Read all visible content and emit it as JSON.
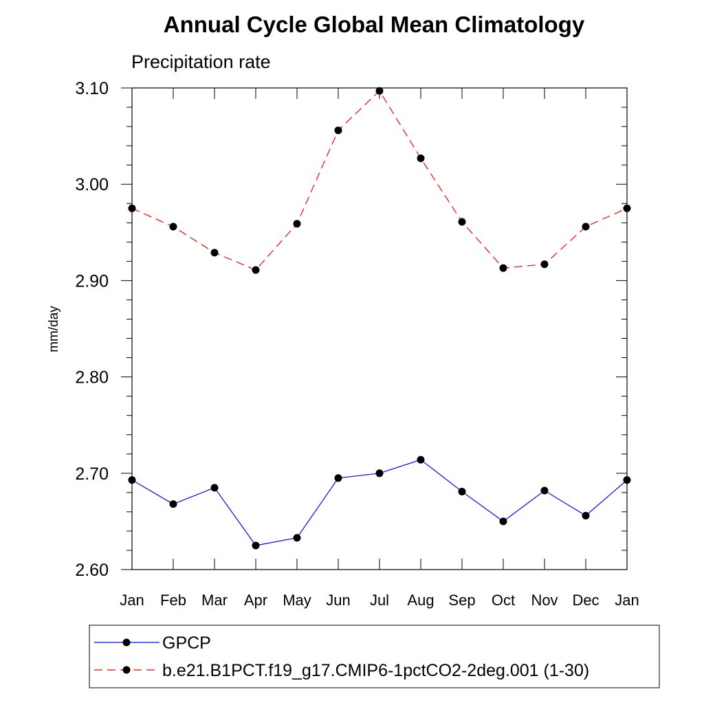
{
  "chart_data": {
    "type": "line",
    "title": "Annual Cycle Global Mean Climatology",
    "subtitle": "Precipitation rate",
    "xlabel": "",
    "ylabel": "mm/day",
    "ylim": [
      2.6,
      3.1
    ],
    "y_ticks": [
      "2.60",
      "2.70",
      "2.80",
      "2.90",
      "3.00",
      "3.10"
    ],
    "y_tick_values": [
      2.6,
      2.7,
      2.8,
      2.9,
      3.0,
      3.1
    ],
    "categories": [
      "Jan",
      "Feb",
      "Mar",
      "Apr",
      "May",
      "Jun",
      "Jul",
      "Aug",
      "Sep",
      "Oct",
      "Nov",
      "Dec",
      "Jan"
    ],
    "grid": false,
    "legend_position": "bottom",
    "series": [
      {
        "name": "GPCP",
        "color": "#0000ff",
        "line_style": "solid",
        "marker": "filled-circle",
        "values": [
          2.693,
          2.668,
          2.685,
          2.625,
          2.633,
          2.695,
          2.7,
          2.714,
          2.681,
          2.65,
          2.682,
          2.656,
          2.693
        ]
      },
      {
        "name": "b.e21.B1PCT.f19_g17.CMIP6-1pctCO2-2deg.001 (1-30)",
        "color": "#ff0000",
        "line_style": "dashed",
        "marker": "filled-circle",
        "values": [
          2.975,
          2.956,
          2.929,
          2.911,
          2.959,
          3.056,
          3.097,
          3.027,
          2.961,
          2.913,
          2.917,
          2.956,
          2.975
        ]
      }
    ]
  }
}
